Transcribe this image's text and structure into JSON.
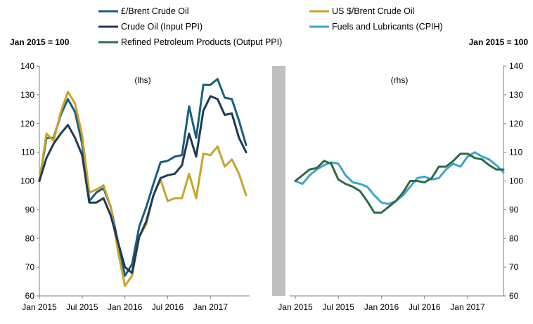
{
  "chart_data": [
    {
      "type": "line",
      "panel": "left",
      "panel_label": "(lhs)",
      "units_label": "Jan 2015 = 100",
      "ylim": [
        60,
        140
      ],
      "yticks": [
        60,
        70,
        80,
        90,
        100,
        110,
        120,
        130,
        140
      ],
      "x_tick_labels": [
        "Jan 2015",
        "Jul 2015",
        "Jan 2016",
        "Jul 2016",
        "Jan 2017"
      ],
      "x_tick_months": [
        0,
        6,
        12,
        18,
        24
      ],
      "x_months": 30,
      "series": [
        {
          "name": "£/Brent Crude Oil",
          "color": "#17607D",
          "values": [
            100,
            115,
            115,
            123,
            128.5,
            124,
            113,
            93,
            96,
            97.5,
            91,
            79,
            67,
            71,
            84,
            91,
            99,
            106.5,
            107,
            108.5,
            109,
            126,
            115,
            133.5,
            133.5,
            135.5,
            129,
            128.5,
            121,
            112.5
          ]
        },
        {
          "name": "US $/Brent Crude Oil",
          "color": "#C9A32C",
          "values": [
            100,
            116.5,
            114,
            124,
            131,
            127,
            116,
            96,
            97,
            98.5,
            91,
            76,
            63.5,
            67,
            80.5,
            85,
            95,
            100.5,
            93,
            94,
            94,
            102.5,
            94,
            109.5,
            109,
            112,
            105,
            107.5,
            102.5,
            95
          ]
        },
        {
          "name": "Crude Oil (Input PPI)",
          "color": "#1F3A57",
          "values": [
            100,
            108,
            113,
            116.5,
            119.5,
            115,
            109,
            92.5,
            92.5,
            94,
            88,
            79,
            70,
            68,
            80.5,
            86,
            95,
            101,
            102,
            102.5,
            105.5,
            116.5,
            108.5,
            124.5,
            129.5,
            128.5,
            123,
            123.5,
            115,
            110
          ]
        }
      ]
    },
    {
      "type": "line",
      "panel": "right",
      "panel_label": "(rhs)",
      "units_label": "Jan 2015 = 100",
      "ylim": [
        60,
        140
      ],
      "yticks": [
        60,
        70,
        80,
        90,
        100,
        110,
        120,
        130,
        140
      ],
      "x_tick_labels": [
        "Jan 2015",
        "Jul 2015",
        "Jan 2016",
        "Jul 2016",
        "Jan 2017"
      ],
      "x_tick_months": [
        0,
        6,
        12,
        18,
        24
      ],
      "x_months": 30,
      "series": [
        {
          "name": "Fuels and Lubricants (CPIH)",
          "color": "#3DA5C9",
          "values": [
            100,
            99,
            102,
            104,
            105.5,
            106.5,
            106,
            102,
            99.5,
            99,
            98,
            95,
            92.5,
            92,
            93,
            95,
            98,
            101,
            101.5,
            100.5,
            101,
            104,
            106,
            105,
            108.5,
            110,
            108.5,
            107.5,
            105.5,
            103
          ]
        },
        {
          "name": "Refined Petroleum Products (Output PPI)",
          "color": "#2D6B47",
          "values": [
            100,
            102,
            104,
            104.5,
            107,
            106,
            100.5,
            99,
            98,
            96.5,
            93,
            89,
            89,
            91,
            93,
            96,
            100,
            100,
            99.5,
            101,
            105,
            105,
            107,
            109.5,
            109.5,
            108,
            107.5,
            105.5,
            104,
            104
          ]
        }
      ]
    }
  ],
  "legend": [
    {
      "name": "£/Brent Crude Oil",
      "color": "#17607D"
    },
    {
      "name": "US $/Brent Crude Oil",
      "color": "#C9A32C"
    },
    {
      "name": "Crude Oil (Input PPI)",
      "color": "#1F3A57"
    },
    {
      "name": "Fuels and Lubricants (CPIH)",
      "color": "#3DA5C9"
    },
    {
      "name": "Refined Petroleum Products (Output PPI)",
      "color": "#2D6B47"
    }
  ],
  "colors": {
    "axis": "#7F7F7F",
    "divider": "#BFBFBF",
    "text": "#000000"
  }
}
